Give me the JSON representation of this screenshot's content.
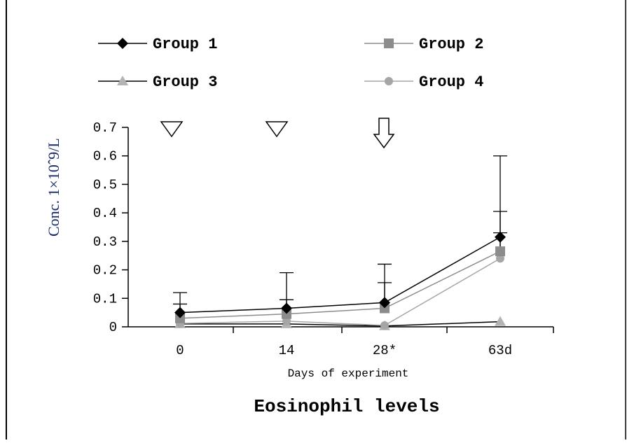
{
  "chart_data": {
    "type": "line",
    "title": "Eosinophil levels",
    "xlabel": "Days of experiment",
    "ylabel": "Conc. 1×10ˆ9/L",
    "categories": [
      "0",
      "14",
      "28*",
      "63d"
    ],
    "yticks": [
      "0",
      "0.1",
      "0.2",
      "0.3",
      "0.4",
      "0.5",
      "0.6",
      "0.7"
    ],
    "ylim": [
      0,
      0.7
    ],
    "grid": false,
    "legend_placement": "top",
    "series": [
      {
        "name": "Group 1",
        "marker": "diamond",
        "color": "#000000",
        "values": [
          0.05,
          0.065,
          0.085,
          0.315
        ],
        "err_upper": [
          0.12,
          0.19,
          0.22,
          0.6
        ]
      },
      {
        "name": "Group 2",
        "marker": "square",
        "color": "#8c8c8c",
        "values": [
          0.03,
          0.045,
          0.065,
          0.265
        ],
        "err_upper": [
          0.08,
          0.095,
          0.155,
          0.405
        ]
      },
      {
        "name": "Group 3",
        "marker": "triangle",
        "color": "#b3b3b3",
        "values": [
          0.01,
          0.01,
          0.003,
          0.018
        ],
        "err_upper": [
          null,
          null,
          null,
          null
        ]
      },
      {
        "name": "Group 4",
        "marker": "circle",
        "color": "#a6a6a6",
        "values": [
          0.012,
          0.02,
          0.005,
          0.24
        ],
        "err_upper": [
          null,
          null,
          null,
          0.33
        ]
      }
    ],
    "annotations": [
      {
        "type": "open-down-triangle",
        "category": "0"
      },
      {
        "type": "open-down-triangle",
        "category": "14"
      },
      {
        "type": "open-down-arrow",
        "category": "28*"
      }
    ]
  }
}
